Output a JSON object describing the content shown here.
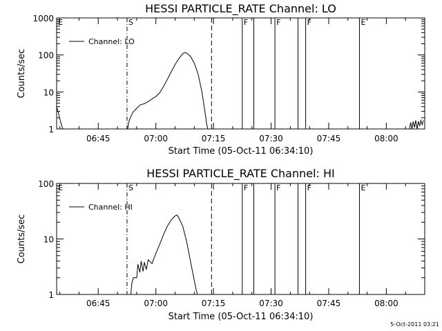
{
  "chart_data": [
    {
      "type": "line",
      "title": "HESSI PARTICLE_RATE Channel: LO",
      "xlabel": "Start Time (05-Oct-11 06:34:10)",
      "ylabel": "Counts/sec",
      "yscale": "log",
      "ylim": [
        1,
        1000
      ],
      "xlim": [
        "06:34:10",
        "08:10:00"
      ],
      "x_ticks": [
        "06:45",
        "07:00",
        "07:15",
        "07:30",
        "07:45",
        "08:00"
      ],
      "y_ticks": [
        "1",
        "10",
        "100",
        "1000"
      ],
      "legend": {
        "entries": [
          "Channel: LO"
        ],
        "placement": "top-left"
      },
      "markers": [
        {
          "time": "06:34:10",
          "label": "E",
          "style": "solid"
        },
        {
          "time": "06:52:30",
          "label": "S",
          "style": "dashdot"
        },
        {
          "time": "07:14:30",
          "label": "",
          "style": "dashed"
        },
        {
          "time": "07:22:30",
          "label": "F",
          "style": "solid"
        },
        {
          "time": "07:25:30",
          "label": "",
          "style": "solid"
        },
        {
          "time": "07:31:00",
          "label": "F",
          "style": "solid"
        },
        {
          "time": "07:37:00",
          "label": "",
          "style": "solid"
        },
        {
          "time": "07:39:00",
          "label": "F",
          "style": "solid"
        },
        {
          "time": "07:53:00",
          "label": "E",
          "style": "solid"
        },
        {
          "time": "08:10:00",
          "label": "",
          "style": "dotted"
        }
      ],
      "series": [
        {
          "name": "Channel: LO",
          "segments": [
            [
              [
                "06:34:10",
                4.0
              ],
              [
                "06:34:40",
                2.6
              ],
              [
                "06:35:10",
                1.6
              ],
              [
                "06:35:30",
                1.2
              ],
              [
                "06:35:50",
                1.0
              ]
            ],
            [
              [
                "06:52:40",
                1.0
              ],
              [
                "06:52:55",
                1.5
              ],
              [
                "06:53:20",
                2.0
              ],
              [
                "06:54:00",
                2.8
              ],
              [
                "06:55:00",
                3.6
              ],
              [
                "06:56:00",
                4.5
              ],
              [
                "06:57:00",
                4.8
              ],
              [
                "06:58:00",
                5.5
              ],
              [
                "06:59:00",
                6.5
              ],
              [
                "07:00:00",
                7.5
              ],
              [
                "07:01:00",
                9.5
              ],
              [
                "07:02:00",
                14
              ],
              [
                "07:03:00",
                22
              ],
              [
                "07:04:00",
                35
              ],
              [
                "07:05:00",
                55
              ],
              [
                "07:06:00",
                80
              ],
              [
                "07:07:00",
                108
              ],
              [
                "07:07:30",
                116
              ],
              [
                "07:08:00",
                112
              ],
              [
                "07:09:00",
                92
              ],
              [
                "07:10:00",
                60
              ],
              [
                "07:11:00",
                30
              ],
              [
                "07:12:00",
                10
              ],
              [
                "07:12:40",
                3.5
              ],
              [
                "07:13:10",
                1.5
              ],
              [
                "07:13:30",
                1.0
              ]
            ],
            [
              [
                "08:06:00",
                1.0
              ],
              [
                "08:06:20",
                1.5
              ],
              [
                "08:06:40",
                1.0
              ],
              [
                "08:07:00",
                1.6
              ],
              [
                "08:07:20",
                1.1
              ],
              [
                "08:07:40",
                1.7
              ],
              [
                "08:08:00",
                1.0
              ],
              [
                "08:08:20",
                1.6
              ],
              [
                "08:08:40",
                1.2
              ],
              [
                "08:09:00",
                1.7
              ],
              [
                "08:09:20",
                1.3
              ],
              [
                "08:09:40",
                1.7
              ]
            ]
          ]
        }
      ]
    },
    {
      "type": "line",
      "title": "HESSI PARTICLE_RATE Channel: HI",
      "xlabel": "Start Time (05-Oct-11 06:34:10)",
      "ylabel": "Counts/sec",
      "yscale": "log",
      "ylim": [
        1,
        100
      ],
      "xlim": [
        "06:34:10",
        "08:10:00"
      ],
      "x_ticks": [
        "06:45",
        "07:00",
        "07:15",
        "07:30",
        "07:45",
        "08:00"
      ],
      "y_ticks": [
        "1",
        "10",
        "100"
      ],
      "legend": {
        "entries": [
          "Channel: HI"
        ],
        "placement": "top-left"
      },
      "markers": [
        {
          "time": "06:34:10",
          "label": "E",
          "style": "solid"
        },
        {
          "time": "06:52:30",
          "label": "S",
          "style": "dashdot"
        },
        {
          "time": "07:14:30",
          "label": "",
          "style": "dashed"
        },
        {
          "time": "07:22:30",
          "label": "F",
          "style": "solid"
        },
        {
          "time": "07:25:30",
          "label": "",
          "style": "solid"
        },
        {
          "time": "07:31:00",
          "label": "F",
          "style": "solid"
        },
        {
          "time": "07:37:00",
          "label": "",
          "style": "solid"
        },
        {
          "time": "07:39:00",
          "label": "F",
          "style": "solid"
        },
        {
          "time": "07:53:00",
          "label": "E",
          "style": "solid"
        },
        {
          "time": "08:10:00",
          "label": "",
          "style": "dotted"
        }
      ],
      "series": [
        {
          "name": "Channel: HI",
          "segments": [
            [
              [
                "06:53:30",
                1.0
              ],
              [
                "06:53:45",
                1.6
              ],
              [
                "06:54:10",
                2.0
              ],
              [
                "06:55:00",
                2.0
              ],
              [
                "06:55:20",
                3.5
              ],
              [
                "06:55:50",
                2.5
              ],
              [
                "06:56:10",
                4.0
              ],
              [
                "06:56:40",
                2.6
              ],
              [
                "06:57:00",
                3.8
              ],
              [
                "06:57:30",
                2.8
              ],
              [
                "06:58:00",
                4.2
              ],
              [
                "06:59:00",
                3.6
              ],
              [
                "07:00:00",
                5.5
              ],
              [
                "07:01:00",
                8.0
              ],
              [
                "07:02:00",
                12
              ],
              [
                "07:03:00",
                17
              ],
              [
                "07:04:00",
                22
              ],
              [
                "07:05:00",
                26
              ],
              [
                "07:05:30",
                27
              ],
              [
                "07:06:00",
                24
              ],
              [
                "07:07:00",
                17
              ],
              [
                "07:08:00",
                9
              ],
              [
                "07:09:00",
                4
              ],
              [
                "07:10:00",
                1.8
              ],
              [
                "07:10:30",
                1.2
              ],
              [
                "07:10:50",
                1.0
              ]
            ]
          ]
        }
      ]
    }
  ],
  "footer": {
    "timestamp": "5-Oct-2011 03:21"
  }
}
